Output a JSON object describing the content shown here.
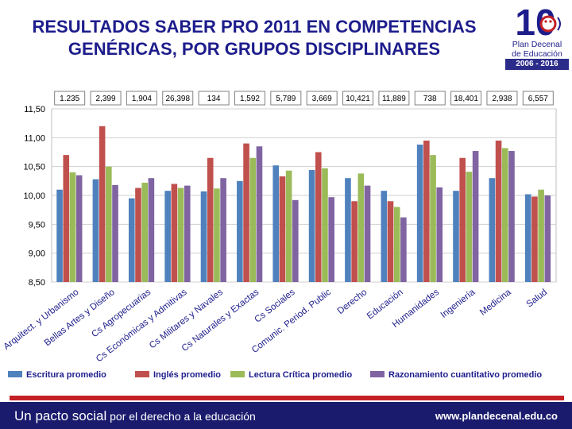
{
  "header": {
    "title_line1": "RESULTADOS SABER PRO 2011 EN COMPETENCIAS",
    "title_line2": "GENÉRICAS, POR GRUPOS DISCIPLINARES"
  },
  "logo": {
    "number": "10",
    "line1": "Plan Decenal",
    "line2": "de Educación",
    "years": "2006 - 2016"
  },
  "footer": {
    "slogan_bold": "Un pacto social",
    "slogan_rest": " por el derecho a la educación",
    "url": "www.plandecenal.edu.co"
  },
  "colors": {
    "title": "#1d1d8c",
    "escritura": "#4f81bd",
    "ingles": "#c0504d",
    "lectura": "#9bbb59",
    "razonamiento": "#8064a2",
    "footer": "#1b1b6e",
    "accent_red": "#c32126"
  },
  "chart_data": {
    "type": "bar",
    "title": "RESULTADOS SABER PRO 2011 EN COMPETENCIAS GENÉRICAS, POR GRUPOS DISCIPLINARES",
    "ylim": [
      8.5,
      11.5
    ],
    "yticks": [
      "11,50",
      "11,00",
      "10,50",
      "10,00",
      "9,50",
      "9,00",
      "8,50"
    ],
    "ytick_values": [
      11.5,
      11.0,
      10.5,
      10.0,
      9.5,
      9.0,
      8.5
    ],
    "categories": [
      "Arquitect. y Urbanismo",
      "Bellas Artes y Diseño",
      "Cs Agropecuarias",
      "Cs Económicas y Admitivas",
      "Cs Militares y Navales",
      "Cs Naturales y Exactas",
      "Cs Sociales",
      "Comunic. Period. Public",
      "Derecho",
      "Educación",
      "Humanidades",
      "Ingeniería",
      "Medicina",
      "Salud"
    ],
    "counts": [
      "1.235",
      "2,399",
      "1,904",
      "26,398",
      "134",
      "1,592",
      "5,789",
      "3,669",
      "10,421",
      "11,889",
      "738",
      "18,401",
      "2,938",
      "6,557"
    ],
    "series": [
      {
        "name": "Escritura promedio",
        "color": "#4f81bd",
        "values": [
          10.1,
          10.28,
          9.95,
          10.08,
          10.07,
          10.25,
          10.52,
          10.44,
          10.3,
          10.08,
          10.88,
          10.08,
          10.3,
          10.02
        ]
      },
      {
        "name": "Inglés promedio",
        "color": "#c0504d",
        "values": [
          10.7,
          11.2,
          10.13,
          10.2,
          10.65,
          10.9,
          10.33,
          10.75,
          9.9,
          9.9,
          10.95,
          10.65,
          10.95,
          9.98
        ]
      },
      {
        "name": "Lectura Crítica promedio",
        "color": "#9bbb59",
        "values": [
          10.4,
          10.5,
          10.22,
          10.13,
          10.12,
          10.65,
          10.43,
          10.47,
          10.38,
          9.8,
          10.7,
          10.41,
          10.82,
          10.1
        ]
      },
      {
        "name": "Razonamiento cuantitativo promedio",
        "color": "#8064a2",
        "values": [
          10.35,
          10.18,
          10.3,
          10.17,
          10.3,
          10.85,
          9.92,
          9.97,
          10.17,
          9.62,
          10.14,
          10.77,
          10.77,
          10.0
        ]
      }
    ]
  }
}
